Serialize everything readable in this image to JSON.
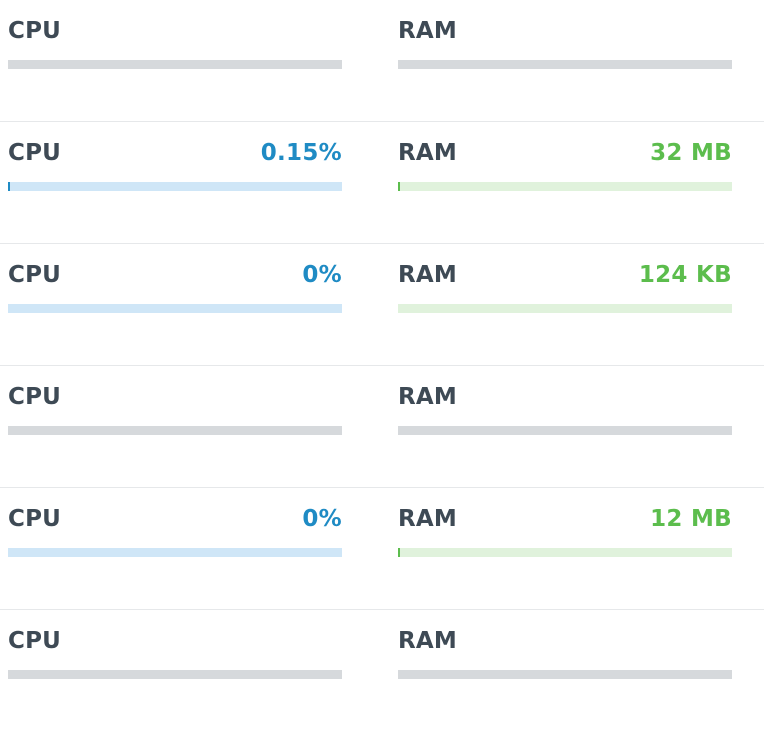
{
  "rows": [
    {
      "cpu": {
        "label": "CPU",
        "value": "",
        "state": "inactive",
        "fill_fraction": 0
      },
      "ram": {
        "label": "RAM",
        "value": "",
        "state": "inactive",
        "fill_fraction": 0
      }
    },
    {
      "cpu": {
        "label": "CPU",
        "value": "0.15%",
        "state": "active",
        "fill_fraction": 0.0045
      },
      "ram": {
        "label": "RAM",
        "value": "32 MB",
        "state": "active",
        "fill_fraction": 0.006
      }
    },
    {
      "cpu": {
        "label": "CPU",
        "value": "0%",
        "state": "active",
        "fill_fraction": 0
      },
      "ram": {
        "label": "RAM",
        "value": "124 KB",
        "state": "active",
        "fill_fraction": 0
      }
    },
    {
      "cpu": {
        "label": "CPU",
        "value": "",
        "state": "inactive",
        "fill_fraction": 0
      },
      "ram": {
        "label": "RAM",
        "value": "",
        "state": "inactive",
        "fill_fraction": 0
      }
    },
    {
      "cpu": {
        "label": "CPU",
        "value": "0%",
        "state": "active",
        "fill_fraction": 0
      },
      "ram": {
        "label": "RAM",
        "value": "12 MB",
        "state": "active",
        "fill_fraction": 0.006
      }
    },
    {
      "cpu": {
        "label": "CPU",
        "value": "",
        "state": "inactive",
        "fill_fraction": 0
      },
      "ram": {
        "label": "RAM",
        "value": "",
        "state": "inactive",
        "fill_fraction": 0
      }
    }
  ],
  "colors": {
    "label": "#3e4a55",
    "cpu_accent": "#1f8bc4",
    "cpu_track": "#cfe6f7",
    "ram_accent": "#5cbd4d",
    "ram_track": "#e0f2dc",
    "inactive_track": "#d6d9dc",
    "divider": "#e6e8ea"
  }
}
